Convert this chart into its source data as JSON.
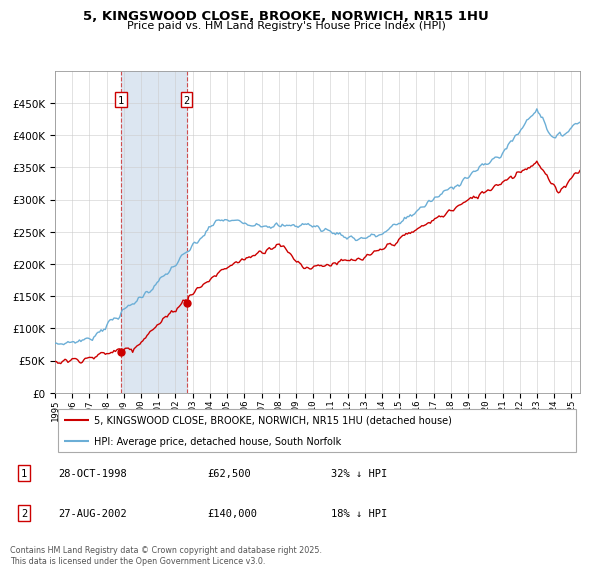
{
  "title": "5, KINGSWOOD CLOSE, BROOKE, NORWICH, NR15 1HU",
  "subtitle": "Price paid vs. HM Land Registry's House Price Index (HPI)",
  "legend_line1": "5, KINGSWOOD CLOSE, BROOKE, NORWICH, NR15 1HU (detached house)",
  "legend_line2": "HPI: Average price, detached house, South Norfolk",
  "sale1_label": "1",
  "sale1_date": "28-OCT-1998",
  "sale1_price": 62500,
  "sale1_note": "32% ↓ HPI",
  "sale2_label": "2",
  "sale2_date": "27-AUG-2002",
  "sale2_price": 140000,
  "sale2_note": "18% ↓ HPI",
  "footnote": "Contains HM Land Registry data © Crown copyright and database right 2025.\nThis data is licensed under the Open Government Licence v3.0.",
  "hpi_color": "#6baed6",
  "price_color": "#cc0000",
  "shade_color": "#dce6f1",
  "marker1_x": 1998.83,
  "marker2_x": 2002.65,
  "ylim_max": 500000,
  "ylim_min": 0,
  "xlim_min": 1995.0,
  "xlim_max": 2025.5
}
